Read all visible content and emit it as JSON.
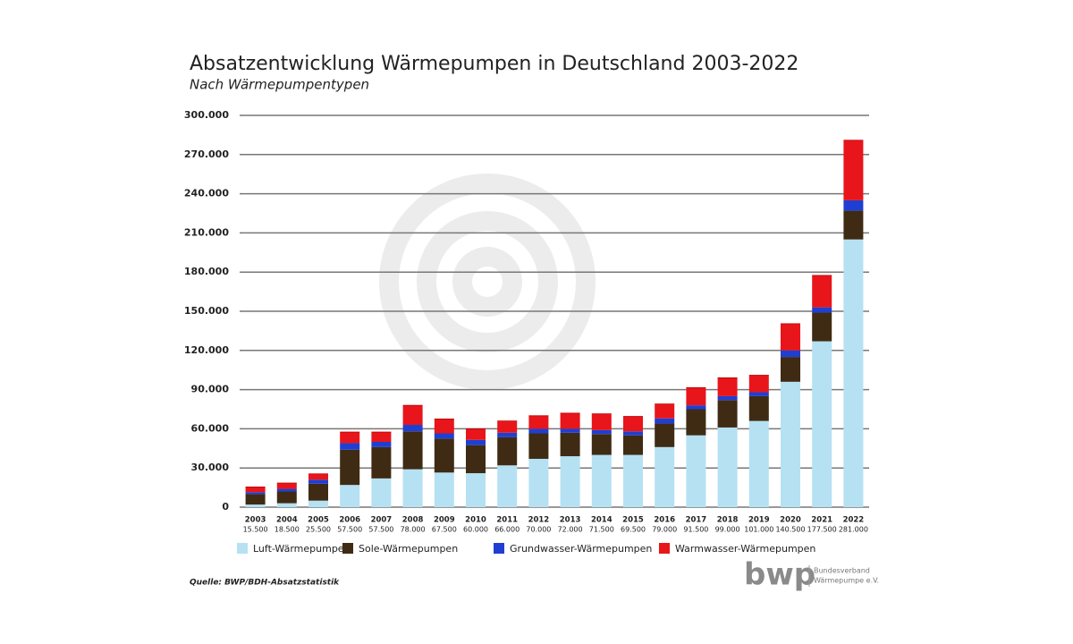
{
  "chart_data": {
    "type": "stacked_bar",
    "title": "Absatzentwicklung Wärmepumpen in Deutschland 2003-2022",
    "subtitle": "Nach Wärmepumpentypen",
    "source": "Quelle: BWP/BDH-Absatzstatistik",
    "logo": {
      "text": "bwp",
      "caption": [
        "Bundesverband",
        "Wärmepumpe e.V."
      ]
    },
    "categories": [
      "2003",
      "2004",
      "2005",
      "2006",
      "2007",
      "2008",
      "2009",
      "2010",
      "2011",
      "2012",
      "2013",
      "2014",
      "2015",
      "2016",
      "2017",
      "2018",
      "2019",
      "2020",
      "2021",
      "2022"
    ],
    "totals": {
      "values": [
        15500,
        18500,
        25500,
        57500,
        57500,
        78000,
        67500,
        60000,
        66000,
        70000,
        72000,
        71500,
        69500,
        79000,
        91500,
        99000,
        101000,
        140500,
        177500,
        281000
      ],
      "value_labels": [
        "15.500",
        "18.500",
        "25.500",
        "57.500",
        "57.500",
        "78.000",
        "67.500",
        "60.000",
        "66.000",
        "70.000",
        "72.000",
        "71.500",
        "69.500",
        "79.000",
        "91.500",
        "99.000",
        "101.000",
        "140.500",
        "177.500",
        "281.000"
      ]
    },
    "series": [
      {
        "name": "Luft-Wärmepumpen",
        "color": "#b5e1f3",
        "values": [
          2000,
          3000,
          5000,
          17000,
          22000,
          29000,
          26500,
          26000,
          32000,
          37000,
          39000,
          40000,
          40000,
          46000,
          55000,
          61000,
          66000,
          96000,
          127000,
          205000
        ]
      },
      {
        "name": "Sole-Wärmepumpen",
        "color": "#3f2b14",
        "values": [
          8000,
          9000,
          13000,
          27000,
          24000,
          29000,
          26000,
          21500,
          21500,
          19500,
          18000,
          16000,
          15000,
          18000,
          20000,
          21000,
          19000,
          19000,
          22000,
          22000
        ]
      },
      {
        "name": "Grundwasser-Wärmepumpen",
        "color": "#1f3fd2",
        "values": [
          1500,
          2000,
          3000,
          5000,
          4000,
          5000,
          4000,
          4000,
          3500,
          3500,
          3000,
          3000,
          3000,
          4000,
          3000,
          3000,
          3000,
          5000,
          4000,
          8000
        ]
      },
      {
        "name": "Warmwasser-Wärmepumpen",
        "color": "#e8151b",
        "values": [
          4000,
          4500,
          4500,
          8500,
          7500,
          15000,
          11000,
          8500,
          9000,
          10000,
          12000,
          12500,
          11500,
          11000,
          13500,
          14000,
          13000,
          20500,
          24500,
          46000
        ]
      }
    ],
    "ylim": [
      0,
      300000
    ],
    "yticks": [
      0,
      {
        "value": 30000,
        "label": "30.000"
      },
      {
        "value": 60000,
        "label": "60.000"
      },
      {
        "value": 90000,
        "label": "90.000"
      },
      {
        "value": 120000,
        "label": "120.000"
      },
      {
        "value": 150000,
        "label": "150.000"
      },
      {
        "value": 180000,
        "label": "180.000"
      },
      {
        "value": 210000,
        "label": "210.000"
      },
      {
        "value": 240000,
        "label": "240.000"
      },
      {
        "value": 270000,
        "label": "270.000"
      },
      {
        "value": 300000,
        "label": "300.000"
      }
    ],
    "grid": true
  }
}
